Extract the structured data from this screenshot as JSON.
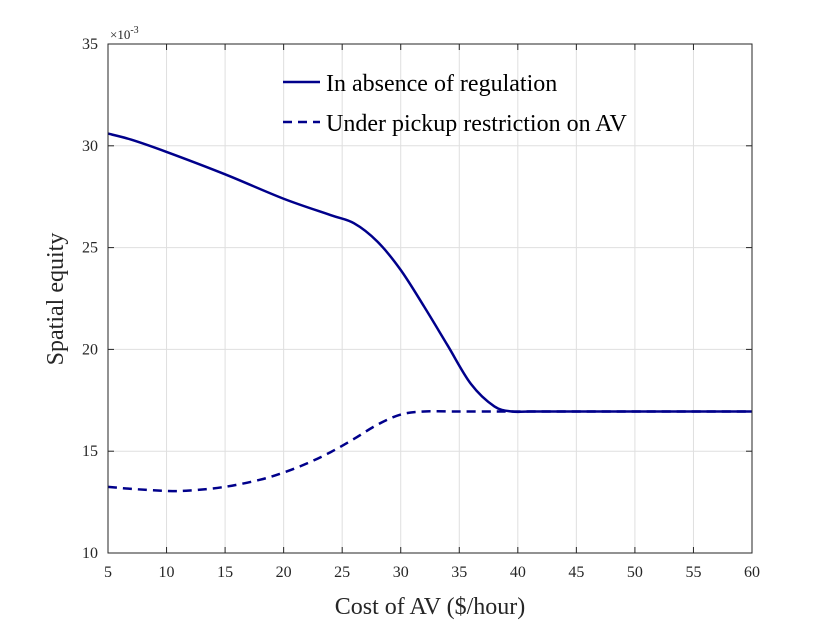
{
  "chart_data": {
    "type": "line",
    "title": "",
    "xlabel": "Cost of AV ($/hour)",
    "ylabel": "Spatial equity",
    "xlim": [
      5,
      60
    ],
    "ylim": [
      10,
      35
    ],
    "y_scale_base": "×10",
    "y_scale_exponent": "-3",
    "x_ticks": [
      5,
      10,
      15,
      20,
      25,
      30,
      35,
      40,
      45,
      50,
      55,
      60
    ],
    "y_ticks": [
      10,
      15,
      20,
      25,
      30,
      35
    ],
    "grid": true,
    "legend_position": "top-right",
    "colors": {
      "series": "#00008b",
      "axis": "#262626",
      "grid": "#dfdfdf"
    },
    "series": [
      {
        "name": "In absence of regulation",
        "style": "solid",
        "x": [
          5,
          7,
          10,
          15,
          20,
          24,
          26,
          28,
          30,
          32,
          34,
          36,
          38,
          39.5,
          41,
          45,
          50,
          55,
          60
        ],
        "y": [
          30.6,
          30.3,
          29.7,
          28.6,
          27.4,
          26.6,
          26.2,
          25.3,
          23.9,
          22.1,
          20.2,
          18.3,
          17.2,
          16.95,
          16.95,
          16.95,
          16.95,
          16.95,
          16.95
        ]
      },
      {
        "name": "Under pickup restriction on AV",
        "style": "dashed",
        "x": [
          5,
          7,
          10,
          12,
          15,
          18,
          20,
          22,
          24,
          26,
          28,
          30,
          32,
          35,
          38,
          40,
          45,
          50,
          55,
          60
        ],
        "y": [
          13.25,
          13.15,
          13.05,
          13.07,
          13.25,
          13.6,
          13.95,
          14.4,
          14.95,
          15.6,
          16.3,
          16.8,
          16.95,
          16.95,
          16.95,
          16.95,
          16.95,
          16.95,
          16.95,
          16.95
        ]
      }
    ]
  }
}
